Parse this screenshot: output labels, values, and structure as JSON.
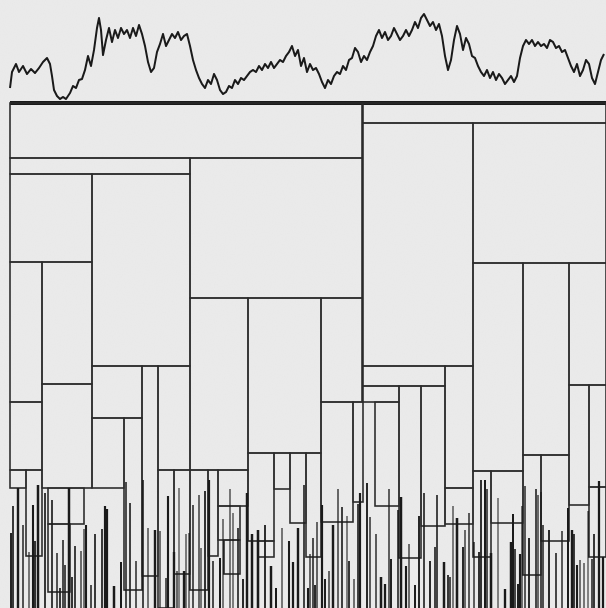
{
  "figure": {
    "kind": "signal trace above a hierarchical tree diagram (scanned print)",
    "colors": {
      "paper": "#ececec",
      "ink": "#1a1a1a",
      "frame_line": "#2a2a2a"
    }
  }
}
